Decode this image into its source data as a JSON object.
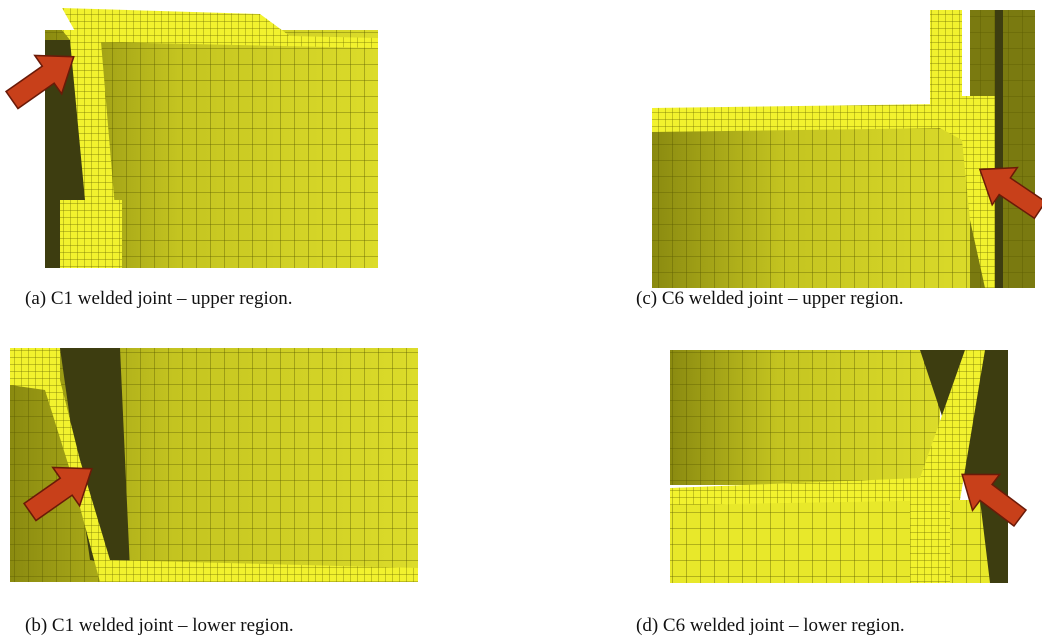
{
  "panels": [
    {
      "caption": "(a) C1 welded joint – upper region."
    },
    {
      "caption": "(c) C6 welded joint – upper region."
    },
    {
      "caption": "(b) C1 welded joint – lower region."
    },
    {
      "caption": "(d) C6 welded joint – lower region."
    }
  ]
}
